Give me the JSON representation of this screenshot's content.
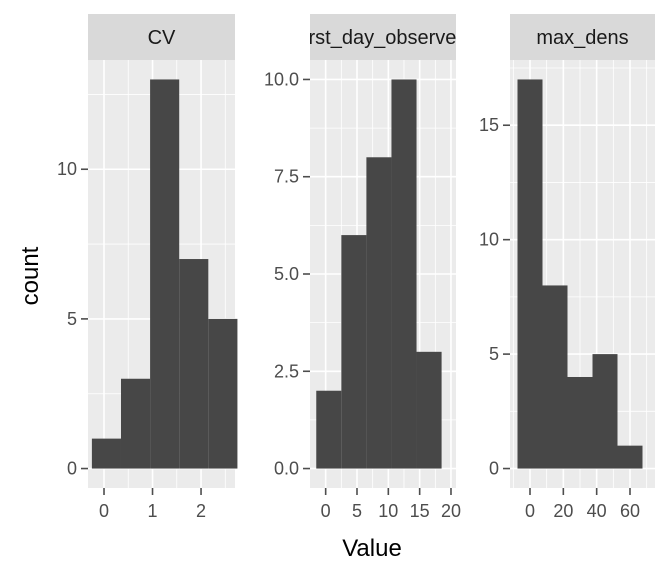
{
  "chart_data": {
    "type": "bar",
    "xlabel": "Value",
    "ylabel": "count",
    "colors": {
      "panel_bg": "#EBEBEB",
      "grid": "#FFFFFF",
      "strip_bg": "#D9D9D9",
      "bar_fill": "#474747",
      "tick": "#4D4D4D"
    },
    "facets": [
      {
        "strip": "CV",
        "xlim": [
          -0.33,
          2.7
        ],
        "ylim": [
          -0.65,
          13.65
        ],
        "xticks": [
          0,
          1,
          2
        ],
        "xtick_labels": [
          "0",
          "1",
          "2"
        ],
        "yticks": [
          0,
          5,
          10
        ],
        "ytick_labels": [
          "0",
          "5",
          "10"
        ],
        "bins": [
          {
            "x0": -0.25,
            "x1": 0.35,
            "count": 1
          },
          {
            "x0": 0.35,
            "x1": 0.95,
            "count": 3
          },
          {
            "x0": 0.95,
            "x1": 1.55,
            "count": 13
          },
          {
            "x0": 1.55,
            "x1": 2.15,
            "count": 7
          },
          {
            "x0": 2.15,
            "x1": 2.75,
            "count": 5
          }
        ]
      },
      {
        "strip": "first_day_observed",
        "xlim": [
          -2.5,
          20.8
        ],
        "ylim": [
          -0.5,
          10.5
        ],
        "xticks": [
          0,
          5,
          10,
          15,
          20
        ],
        "xtick_labels": [
          "0",
          "5",
          "10",
          "15",
          "20"
        ],
        "yticks": [
          0,
          2.5,
          5,
          7.5,
          10
        ],
        "ytick_labels": [
          "0.0",
          "2.5",
          "5.0",
          "7.5",
          "10.0"
        ],
        "bins": [
          {
            "x0": -1.5,
            "x1": 2.5,
            "count": 2
          },
          {
            "x0": 2.5,
            "x1": 6.5,
            "count": 6
          },
          {
            "x0": 6.5,
            "x1": 10.5,
            "count": 8
          },
          {
            "x0": 10.5,
            "x1": 14.5,
            "count": 10
          },
          {
            "x0": 14.5,
            "x1": 18.5,
            "count": 3
          }
        ]
      },
      {
        "strip": "max_dens",
        "xlim": [
          -12,
          75
        ],
        "ylim": [
          -0.85,
          17.85
        ],
        "xticks": [
          0,
          20,
          40,
          60
        ],
        "xtick_labels": [
          "0",
          "20",
          "40",
          "60"
        ],
        "yticks": [
          0,
          5,
          10,
          15
        ],
        "ytick_labels": [
          "0",
          "5",
          "10",
          "15"
        ],
        "bins": [
          {
            "x0": -7.5,
            "x1": 7.5,
            "count": 17
          },
          {
            "x0": 7.5,
            "x1": 22.5,
            "count": 8
          },
          {
            "x0": 22.5,
            "x1": 37.5,
            "count": 4
          },
          {
            "x0": 37.5,
            "x1": 52.5,
            "count": 5
          },
          {
            "x0": 52.5,
            "x1": 67.5,
            "count": 1
          }
        ]
      }
    ]
  }
}
